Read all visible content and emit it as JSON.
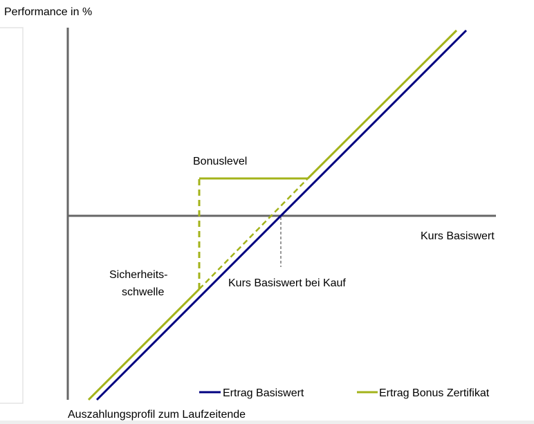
{
  "axis_labels": {
    "y": "Performance in %",
    "x": "Kurs Basiswert"
  },
  "annotations": {
    "bonus_level": "Bonuslevel",
    "safety_threshold": [
      "Sicherheits-",
      "schwelle"
    ],
    "purchase_price": "Kurs Basiswert bei Kauf"
  },
  "legend": [
    {
      "name": "Ertrag Basiswert",
      "color": "#000080"
    },
    {
      "name": "Ertrag Bonus Zertifikat",
      "color": "#a3b31a"
    }
  ],
  "caption": "Auszahlungsprofil zum Laufzeitende"
}
